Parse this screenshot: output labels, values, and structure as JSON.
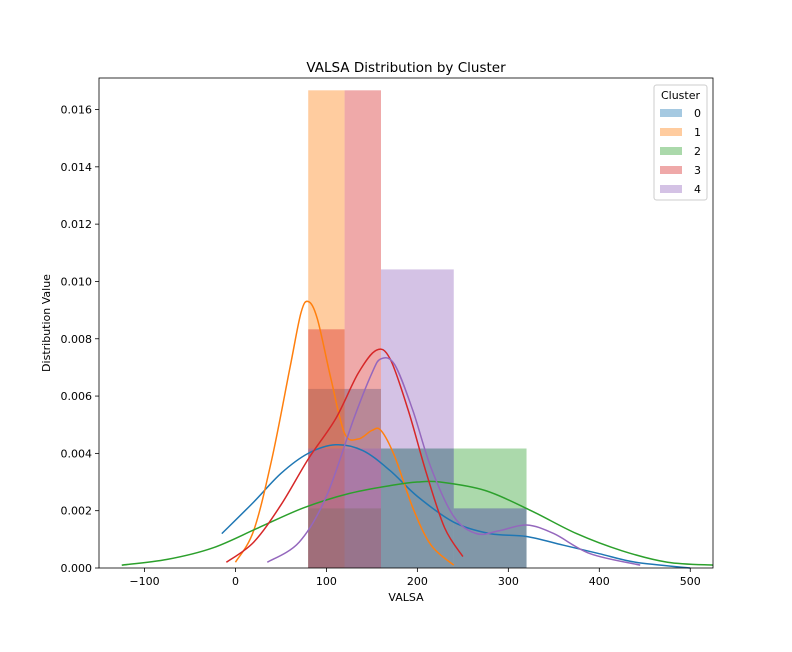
{
  "chart_data": {
    "type": "histogram+kde",
    "title": "VALSA Distribution by Cluster",
    "xlabel": "VALSA",
    "ylabel": "Distribution Value",
    "xlim": [
      -150,
      525
    ],
    "ylim": [
      0,
      0.0171
    ],
    "x_ticks": [
      -100,
      0,
      100,
      200,
      300,
      400,
      500
    ],
    "y_ticks": [
      0.0,
      0.002,
      0.004,
      0.006,
      0.008,
      0.01,
      0.012,
      0.014,
      0.016
    ],
    "y_tick_labels": [
      "0.000",
      "0.002",
      "0.004",
      "0.006",
      "0.008",
      "0.010",
      "0.012",
      "0.014",
      "0.016"
    ],
    "grid": false,
    "legend": {
      "title": "Cluster",
      "placement": "top-right",
      "entries": [
        "0",
        "1",
        "2",
        "3",
        "4"
      ]
    },
    "series": [
      {
        "name": "0",
        "color": "#1f77b4",
        "bars": [
          {
            "x0": 80,
            "x1": 160,
            "height": 0.00625
          },
          {
            "x0": 160,
            "x1": 240,
            "height": 0.00417
          },
          {
            "x0": 240,
            "x1": 320,
            "height": 0.00208
          }
        ],
        "kde": [
          [
            -15,
            0.0012
          ],
          [
            20,
            0.0023
          ],
          [
            50,
            0.0033
          ],
          [
            80,
            0.004
          ],
          [
            110,
            0.0043
          ],
          [
            140,
            0.0041
          ],
          [
            170,
            0.0034
          ],
          [
            200,
            0.0025
          ],
          [
            240,
            0.0016
          ],
          [
            280,
            0.0012
          ],
          [
            320,
            0.0011
          ],
          [
            360,
            0.0008
          ],
          [
            400,
            0.0005
          ],
          [
            440,
            0.0002
          ],
          [
            500,
            0.0
          ]
        ]
      },
      {
        "name": "1",
        "color": "#ff7f0e",
        "bars": [
          {
            "x0": 80,
            "x1": 120,
            "height": 0.01667
          }
        ],
        "kde": [
          [
            0,
            0.0002
          ],
          [
            20,
            0.0013
          ],
          [
            40,
            0.0038
          ],
          [
            60,
            0.007
          ],
          [
            72,
            0.0089
          ],
          [
            80,
            0.0093
          ],
          [
            90,
            0.0087
          ],
          [
            105,
            0.0066
          ],
          [
            120,
            0.0047
          ],
          [
            135,
            0.0045
          ],
          [
            150,
            0.0048
          ],
          [
            160,
            0.0048
          ],
          [
            175,
            0.0039
          ],
          [
            195,
            0.0021
          ],
          [
            215,
            0.0008
          ],
          [
            240,
            0.0001
          ]
        ]
      },
      {
        "name": "2",
        "color": "#2ca02c",
        "bars": [
          {
            "x0": 80,
            "x1": 160,
            "height": 0.00208
          },
          {
            "x0": 160,
            "x1": 240,
            "height": 0.00417
          },
          {
            "x0": 240,
            "x1": 320,
            "height": 0.00417
          }
        ],
        "kde": [
          [
            -125,
            0.0001
          ],
          [
            -75,
            0.0003
          ],
          [
            -25,
            0.0007
          ],
          [
            25,
            0.0014
          ],
          [
            75,
            0.0021
          ],
          [
            125,
            0.0026
          ],
          [
            175,
            0.0029
          ],
          [
            200,
            0.003
          ],
          [
            225,
            0.003
          ],
          [
            275,
            0.0027
          ],
          [
            325,
            0.002
          ],
          [
            375,
            0.0012
          ],
          [
            425,
            0.0006
          ],
          [
            475,
            0.0002
          ],
          [
            525,
            0.0001
          ]
        ]
      },
      {
        "name": "3",
        "color": "#d62728",
        "bars": [
          {
            "x0": 80,
            "x1": 120,
            "height": 0.00833
          },
          {
            "x0": 120,
            "x1": 160,
            "height": 0.01667
          }
        ],
        "kde": [
          [
            -10,
            0.0002
          ],
          [
            20,
            0.0009
          ],
          [
            50,
            0.0022
          ],
          [
            80,
            0.0038
          ],
          [
            110,
            0.0052
          ],
          [
            135,
            0.0068
          ],
          [
            155,
            0.0076
          ],
          [
            170,
            0.0073
          ],
          [
            190,
            0.0055
          ],
          [
            210,
            0.0033
          ],
          [
            230,
            0.0014
          ],
          [
            250,
            0.0004
          ]
        ]
      },
      {
        "name": "4",
        "color": "#9467bd",
        "bars": [
          {
            "x0": 80,
            "x1": 160,
            "height": 0.00417
          },
          {
            "x0": 160,
            "x1": 240,
            "height": 0.01042
          },
          {
            "x0": 240,
            "x1": 320,
            "height": 0.00208
          }
        ],
        "kde": [
          [
            35,
            0.0002
          ],
          [
            70,
            0.0009
          ],
          [
            100,
            0.0025
          ],
          [
            130,
            0.0052
          ],
          [
            150,
            0.0068
          ],
          [
            160,
            0.0073
          ],
          [
            175,
            0.0071
          ],
          [
            195,
            0.0055
          ],
          [
            215,
            0.0035
          ],
          [
            240,
            0.0018
          ],
          [
            265,
            0.0012
          ],
          [
            290,
            0.0013
          ],
          [
            320,
            0.0015
          ],
          [
            350,
            0.0012
          ],
          [
            390,
            0.0005
          ],
          [
            445,
            0.0001
          ]
        ]
      }
    ]
  }
}
